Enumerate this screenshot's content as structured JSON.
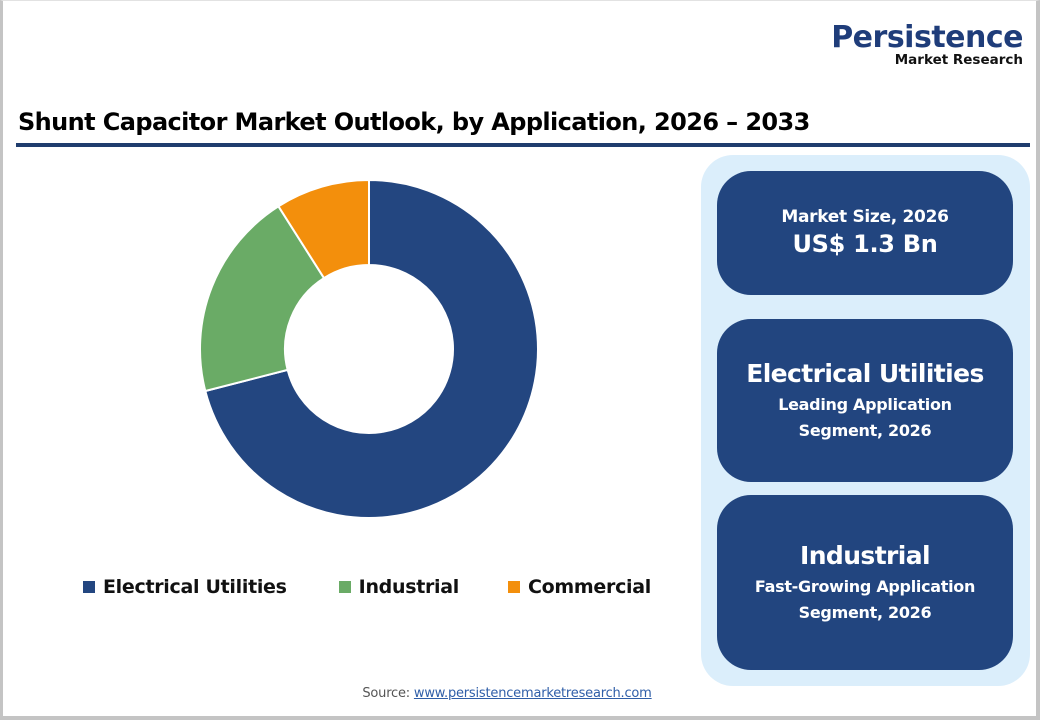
{
  "logo": {
    "main": "Persistence",
    "sub": "Market Research"
  },
  "title": "Shunt Capacitor Market Outlook, by Application, 2026 – 2033",
  "colors": {
    "electrical_utilities": "#234680",
    "industrial": "#6aab66",
    "commercial": "#f38f0c",
    "card_bg": "#22457f",
    "panel_bg": "#dbeefb",
    "title_rule": "#1f3d6e"
  },
  "legend": [
    {
      "label": "Electrical Utilities",
      "color": "#234680"
    },
    {
      "label": "Industrial",
      "color": "#6aab66"
    },
    {
      "label": "Commercial",
      "color": "#f38f0c"
    }
  ],
  "cards": {
    "market_size": {
      "label": "Market Size, 2026",
      "value": "US$ 1.3 Bn"
    },
    "leading": {
      "title": "Electrical Utilities",
      "line1": "Leading Application",
      "line2": "Segment, 2026"
    },
    "fast_growing": {
      "title": "Industrial",
      "line1": "Fast-Growing Application",
      "line2": "Segment, 2026"
    }
  },
  "source": {
    "label": "Source: ",
    "link": "www.persistencemarketresearch.com"
  },
  "chart_data": {
    "type": "pie",
    "subtype": "donut",
    "title": "Shunt Capacitor Market Outlook, by Application, 2026 – 2033",
    "categories": [
      "Electrical Utilities",
      "Industrial",
      "Commercial"
    ],
    "values": [
      71,
      20,
      9
    ],
    "unit": "% share (estimated from slice angles)",
    "colors": [
      "#234680",
      "#6aab66",
      "#f38f0c"
    ],
    "legend_position": "bottom",
    "data_labels": false
  }
}
